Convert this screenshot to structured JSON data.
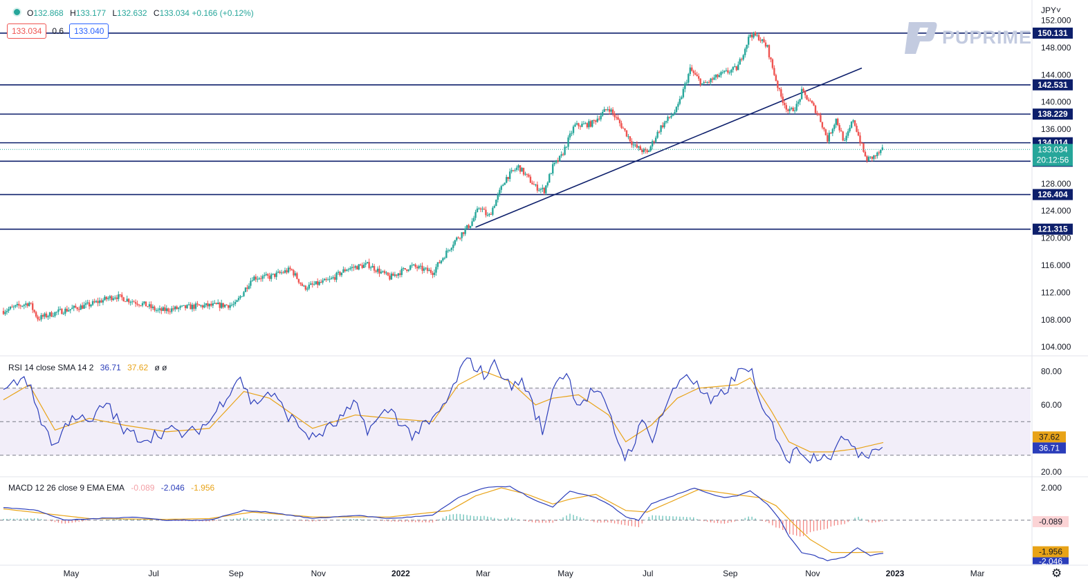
{
  "header": {
    "open_label": "O",
    "open": "132.868",
    "high_label": "H",
    "high": "133.177",
    "low_label": "L",
    "low": "132.632",
    "close_label": "C",
    "close": "133.034",
    "change": "+0.166 (+0.12%)",
    "bid": "133.034",
    "spread": "0.6",
    "ask": "133.040",
    "currency": "JPY˅"
  },
  "brand": {
    "name": "PUPRIME",
    "color": "#c3cbe0"
  },
  "colors": {
    "up": "#26a69a",
    "down": "#ef5350",
    "level": "#0d1f6b",
    "rsi": "#2a3dba",
    "signal": "#e8a317"
  },
  "chart_data": [
    {
      "type": "candlestick",
      "name": "price",
      "x_labels": [
        "May",
        "Jul",
        "Sep",
        "Nov",
        "2022",
        "Mar",
        "May",
        "Jul",
        "Sep",
        "Nov",
        "2023",
        "Mar"
      ],
      "y_ticks": [
        "152.000",
        "148.000",
        "144.000",
        "140.000",
        "136.000",
        "128.000",
        "124.000",
        "120.000",
        "116.000",
        "112.000",
        "108.000",
        "104.000"
      ],
      "ylim": [
        103,
        155
      ],
      "path_points": [
        [
          0,
          109.3
        ],
        [
          6,
          110.5
        ],
        [
          8,
          108.2
        ],
        [
          13,
          109.2
        ],
        [
          20,
          110.2
        ],
        [
          26,
          111.5
        ],
        [
          33,
          110.2
        ],
        [
          36,
          109.3
        ],
        [
          45,
          110.0
        ],
        [
          54,
          110.2
        ],
        [
          58,
          114.2
        ],
        [
          62,
          114.3
        ],
        [
          67,
          115.4
        ],
        [
          70,
          112.7
        ],
        [
          76,
          113.8
        ],
        [
          80,
          115.5
        ],
        [
          85,
          116.1
        ],
        [
          90,
          114.2
        ],
        [
          95,
          115.9
        ],
        [
          100,
          115.0
        ],
        [
          105,
          119.5
        ],
        [
          109,
          122.2
        ],
        [
          111,
          124.7
        ],
        [
          113,
          123.0
        ],
        [
          117,
          128.8
        ],
        [
          120,
          130.5
        ],
        [
          124,
          127.5
        ],
        [
          126,
          127.0
        ],
        [
          128,
          130.5
        ],
        [
          130,
          132.0
        ],
        [
          133,
          136.5
        ],
        [
          137,
          136.8
        ],
        [
          141,
          139.2
        ],
        [
          144,
          136.5
        ],
        [
          147,
          133.5
        ],
        [
          150,
          132.5
        ],
        [
          153,
          136.2
        ],
        [
          157,
          139.0
        ],
        [
          160,
          144.8
        ],
        [
          163,
          142.5
        ],
        [
          167,
          144.0
        ],
        [
          171,
          145.0
        ],
        [
          174,
          150.0
        ],
        [
          176,
          149.5
        ],
        [
          178,
          148.0
        ],
        [
          179,
          145.5
        ],
        [
          181,
          141.0
        ],
        [
          183,
          138.5
        ],
        [
          185,
          139.5
        ],
        [
          186,
          141.5
        ],
        [
          188,
          140.0
        ],
        [
          190,
          138.0
        ],
        [
          192,
          134.5
        ],
        [
          194,
          137.5
        ],
        [
          196,
          134.0
        ],
        [
          198,
          137.5
        ],
        [
          200,
          133.5
        ],
        [
          201,
          131.5
        ],
        [
          203,
          132.0
        ],
        [
          205,
          133.0
        ]
      ],
      "horizontal_levels": [
        "150.131",
        "142.531",
        "138.229",
        "134.014",
        "131.303",
        "126.404",
        "121.315"
      ],
      "current_price": "133.034",
      "countdown": "20:12:56",
      "trendline": [
        [
          110,
          121.6
        ],
        [
          200,
          145.0
        ]
      ]
    },
    {
      "type": "line",
      "name": "RSI",
      "legend": "RSI 14 close SMA 14 2",
      "values": [
        "36.71",
        "37.62"
      ],
      "flags": "ø ø",
      "y_ticks": [
        "80.00",
        "60.00",
        "20.00"
      ],
      "ylim": [
        18,
        88
      ],
      "bands": [
        70,
        50,
        30
      ],
      "rsi_points": [
        [
          0,
          68
        ],
        [
          5,
          78
        ],
        [
          9,
          50
        ],
        [
          12,
          35
        ],
        [
          16,
          55
        ],
        [
          20,
          48
        ],
        [
          24,
          62
        ],
        [
          28,
          44
        ],
        [
          33,
          40
        ],
        [
          38,
          45
        ],
        [
          43,
          42
        ],
        [
          48,
          50
        ],
        [
          55,
          78
        ],
        [
          58,
          60
        ],
        [
          62,
          68
        ],
        [
          67,
          52
        ],
        [
          72,
          40
        ],
        [
          77,
          48
        ],
        [
          82,
          60
        ],
        [
          85,
          45
        ],
        [
          90,
          58
        ],
        [
          95,
          42
        ],
        [
          100,
          50
        ],
        [
          104,
          65
        ],
        [
          106,
          78
        ],
        [
          108,
          88
        ],
        [
          112,
          78
        ],
        [
          115,
          85
        ],
        [
          118,
          70
        ],
        [
          121,
          75
        ],
        [
          124,
          55
        ],
        [
          126,
          42
        ],
        [
          128,
          72
        ],
        [
          131,
          80
        ],
        [
          134,
          60
        ],
        [
          138,
          70
        ],
        [
          141,
          55
        ],
        [
          143,
          40
        ],
        [
          145,
          28
        ],
        [
          149,
          50
        ],
        [
          151,
          40
        ],
        [
          154,
          58
        ],
        [
          157,
          72
        ],
        [
          159,
          80
        ],
        [
          162,
          70
        ],
        [
          165,
          60
        ],
        [
          168,
          68
        ],
        [
          171,
          78
        ],
        [
          174,
          84
        ],
        [
          176,
          60
        ],
        [
          179,
          48
        ],
        [
          181,
          38
        ],
        [
          183,
          25
        ],
        [
          185,
          36
        ],
        [
          188,
          28
        ],
        [
          191,
          32
        ],
        [
          193,
          30
        ],
        [
          195,
          37
        ],
        [
          197,
          42
        ],
        [
          199,
          32
        ],
        [
          202,
          32
        ],
        [
          205,
          36.7
        ]
      ],
      "signal_points": [
        [
          0,
          63
        ],
        [
          6,
          72
        ],
        [
          12,
          45
        ],
        [
          20,
          52
        ],
        [
          28,
          48
        ],
        [
          38,
          44
        ],
        [
          48,
          46
        ],
        [
          56,
          68
        ],
        [
          62,
          64
        ],
        [
          72,
          46
        ],
        [
          82,
          54
        ],
        [
          90,
          52
        ],
        [
          100,
          50
        ],
        [
          106,
          72
        ],
        [
          112,
          80
        ],
        [
          118,
          74
        ],
        [
          124,
          60
        ],
        [
          128,
          64
        ],
        [
          134,
          66
        ],
        [
          141,
          54
        ],
        [
          145,
          38
        ],
        [
          151,
          48
        ],
        [
          157,
          64
        ],
        [
          162,
          70
        ],
        [
          171,
          72
        ],
        [
          174,
          76
        ],
        [
          179,
          56
        ],
        [
          183,
          38
        ],
        [
          188,
          32
        ],
        [
          193,
          32
        ],
        [
          199,
          34
        ],
        [
          205,
          37.6
        ]
      ]
    },
    {
      "type": "line",
      "name": "MACD",
      "legend": "MACD 12 26 close 9 EMA EMA",
      "values": [
        "-0.089",
        "-2.046",
        "-1.956"
      ],
      "y_ticks": [
        "2.000"
      ],
      "ylim": [
        -2.7,
        2.6
      ],
      "macd_points": [
        [
          0,
          0.8
        ],
        [
          8,
          0.6
        ],
        [
          14,
          0.0
        ],
        [
          22,
          0.1
        ],
        [
          30,
          0.2
        ],
        [
          38,
          0.0
        ],
        [
          48,
          0.0
        ],
        [
          56,
          0.6
        ],
        [
          62,
          0.5
        ],
        [
          72,
          0.1
        ],
        [
          82,
          0.3
        ],
        [
          90,
          0.1
        ],
        [
          100,
          0.3
        ],
        [
          106,
          1.4
        ],
        [
          112,
          2.0
        ],
        [
          118,
          2.1
        ],
        [
          124,
          1.2
        ],
        [
          128,
          0.8
        ],
        [
          132,
          1.8
        ],
        [
          138,
          1.4
        ],
        [
          141,
          1.0
        ],
        [
          145,
          0.2
        ],
        [
          148,
          0.0
        ],
        [
          151,
          1.0
        ],
        [
          157,
          1.6
        ],
        [
          161,
          2.0
        ],
        [
          165,
          1.6
        ],
        [
          168,
          1.4
        ],
        [
          171,
          1.5
        ],
        [
          174,
          1.8
        ],
        [
          178,
          1.0
        ],
        [
          181,
          0.0
        ],
        [
          183,
          -1.0
        ],
        [
          186,
          -2.0
        ],
        [
          189,
          -2.2
        ],
        [
          192,
          -2.5
        ],
        [
          196,
          -2.3
        ],
        [
          199,
          -1.7
        ],
        [
          202,
          -2.2
        ],
        [
          205,
          -2.05
        ]
      ],
      "signal_points": [
        [
          0,
          0.7
        ],
        [
          10,
          0.4
        ],
        [
          20,
          0.1
        ],
        [
          38,
          0.05
        ],
        [
          48,
          0.1
        ],
        [
          58,
          0.5
        ],
        [
          72,
          0.2
        ],
        [
          90,
          0.2
        ],
        [
          104,
          0.6
        ],
        [
          110,
          1.5
        ],
        [
          116,
          2.0
        ],
        [
          122,
          1.6
        ],
        [
          128,
          1.0
        ],
        [
          132,
          1.3
        ],
        [
          138,
          1.6
        ],
        [
          145,
          0.6
        ],
        [
          150,
          0.5
        ],
        [
          156,
          1.2
        ],
        [
          162,
          1.9
        ],
        [
          170,
          1.6
        ],
        [
          176,
          1.4
        ],
        [
          180,
          0.9
        ],
        [
          184,
          -0.2
        ],
        [
          188,
          -1.2
        ],
        [
          193,
          -2.0
        ],
        [
          199,
          -2.0
        ],
        [
          205,
          -1.96
        ]
      ]
    }
  ]
}
